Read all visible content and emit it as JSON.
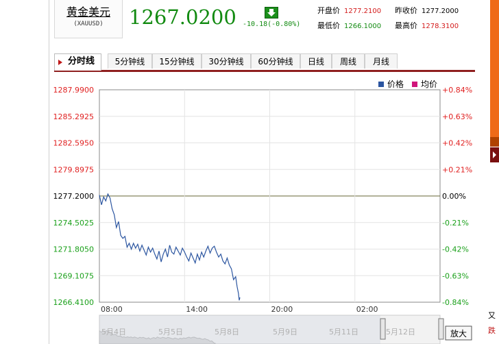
{
  "quote": {
    "name": "黄金美元",
    "code": "(XAUUSD)",
    "price": "1267.0200",
    "change": "-10.18(-0.80%)",
    "stats": {
      "open_label": "开盘价",
      "open": "1277.2100",
      "prev_label": "昨收价",
      "prev": "1277.2000",
      "low_label": "最低价",
      "low": "1266.1000",
      "high_label": "最高价",
      "high": "1278.3100"
    }
  },
  "tabs": [
    "分时线",
    "5分钟线",
    "15分钟线",
    "30分钟线",
    "60分钟线",
    "日线",
    "周线",
    "月线"
  ],
  "navigator": {
    "date_labels": [
      "5月4日",
      "5月5日",
      "5月8日",
      "5月9日",
      "5月11日",
      "5月12日"
    ],
    "zoom_label": "放大"
  },
  "side": {
    "text1": "又",
    "text2": "跌"
  },
  "colors": {
    "up": "#e02020",
    "down": "#1aa01a",
    "line": "#2b55a0",
    "avg": "#d0147a",
    "zero": "#666633"
  },
  "chart_data": {
    "type": "line",
    "legend": [
      "价格",
      "均价"
    ],
    "legend_position": "top-right",
    "grid": true,
    "ylim": [
      1266.41,
      1287.99
    ],
    "reference_price": 1277.2,
    "y_ticks_left": [
      "1287.9900",
      "1285.2925",
      "1282.5950",
      "1279.8975",
      "1277.2000",
      "1274.5025",
      "1271.8050",
      "1269.1075",
      "1266.4100"
    ],
    "y_ticks_right": [
      "+0.84%",
      "+0.63%",
      "+0.42%",
      "+0.21%",
      "0.00%",
      "-0.21%",
      "-0.42%",
      "-0.63%",
      "-0.84%"
    ],
    "x_ticks": [
      "08:00",
      "14:00",
      "20:00",
      "02:00"
    ],
    "x_range_hours": [
      0,
      24
    ],
    "series": [
      {
        "name": "价格",
        "x": [
          0,
          0.15,
          0.3,
          0.45,
          0.6,
          0.75,
          0.9,
          1.05,
          1.2,
          1.35,
          1.5,
          1.65,
          1.8,
          1.95,
          2.1,
          2.25,
          2.4,
          2.55,
          2.7,
          2.85,
          3.0,
          3.15,
          3.3,
          3.45,
          3.6,
          3.75,
          3.9,
          4.05,
          4.2,
          4.35,
          4.5,
          4.65,
          4.8,
          4.95,
          5.1,
          5.25,
          5.4,
          5.55,
          5.7,
          5.85,
          6.0,
          6.15,
          6.3,
          6.45,
          6.6,
          6.75,
          6.9,
          7.05,
          7.2,
          7.35,
          7.5,
          7.65,
          7.8,
          7.95,
          8.1,
          8.25,
          8.4,
          8.55,
          8.7,
          8.85,
          9.0,
          9.15,
          9.3,
          9.45,
          9.6,
          9.7,
          9.8,
          9.85,
          9.9
        ],
        "values": [
          1277.3,
          1276.3,
          1277.1,
          1276.7,
          1277.4,
          1277.0,
          1275.9,
          1275.3,
          1274.0,
          1274.6,
          1273.2,
          1272.9,
          1273.1,
          1272.0,
          1272.4,
          1271.8,
          1272.4,
          1271.9,
          1272.3,
          1271.6,
          1272.2,
          1271.7,
          1271.2,
          1272.0,
          1271.5,
          1271.9,
          1271.3,
          1270.8,
          1271.6,
          1270.5,
          1271.3,
          1271.8,
          1271.0,
          1272.2,
          1271.5,
          1271.3,
          1272.0,
          1271.6,
          1271.2,
          1271.9,
          1271.5,
          1271.0,
          1270.6,
          1271.4,
          1270.9,
          1270.4,
          1271.3,
          1270.7,
          1271.5,
          1271.0,
          1271.6,
          1272.1,
          1271.4,
          1271.9,
          1272.1,
          1271.5,
          1271.0,
          1271.3,
          1270.6,
          1270.3,
          1270.9,
          1270.2,
          1269.8,
          1268.7,
          1269.0,
          1268.0,
          1267.3,
          1266.6,
          1266.9
        ]
      }
    ]
  }
}
